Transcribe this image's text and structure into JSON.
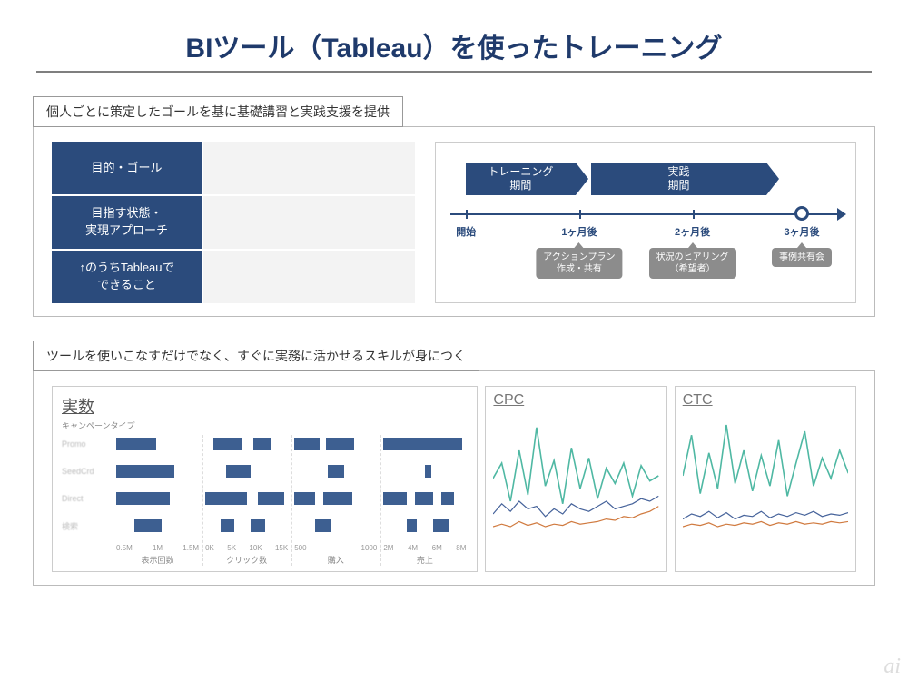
{
  "title": "BIツール（Tableau）を使ったトレーニング",
  "section1": {
    "label": "個人ごとに策定したゴールを基に基礎講習と実践支援を提供",
    "matrix_rows": [
      "目的・ゴール",
      "目指す状態・\n実現アプローチ",
      "↑のうちTableauで\nできること"
    ],
    "timeline": {
      "phases": [
        {
          "label": "トレーニング\n期間",
          "left_pct": 4,
          "width_pct": 28
        },
        {
          "label": "実践\n期間",
          "left_pct": 36,
          "width_pct": 45
        }
      ],
      "ticks": [
        {
          "pct": 4,
          "label": "開始"
        },
        {
          "pct": 33,
          "label": "1ヶ月後"
        },
        {
          "pct": 62,
          "label": "2ヶ月後"
        },
        {
          "pct": 90,
          "label": "3ヶ月後"
        }
      ],
      "end_circle_pct": 90,
      "milestones": [
        {
          "pct": 33,
          "text": "アクションプラン\n作成・共有"
        },
        {
          "pct": 62,
          "text": "状況のヒアリング\n（希望者）"
        },
        {
          "pct": 90,
          "text": "事例共有会"
        }
      ]
    }
  },
  "section2": {
    "label": "ツールを使いこなすだけでなく、すぐに実務に活かせるスキルが身につく",
    "dashboard": {
      "left_title": "実数",
      "left_subtitle": "キャンペーンタイプ",
      "row_labels": [
        "Promo",
        "SeedCrd",
        "Direct",
        "検索"
      ],
      "columns": [
        {
          "xlabel": "表示回数",
          "ticks": [
            "0.5M",
            "1M",
            "1.5M"
          ],
          "rows": [
            [
              [
                0,
                48
              ]
            ],
            [
              [
                0,
                70
              ]
            ],
            [
              [
                0,
                65
              ]
            ],
            [
              [
                22,
                55
              ]
            ]
          ]
        },
        {
          "xlabel": "クリック数",
          "ticks": [
            "0K",
            "5K",
            "10K",
            "15K"
          ],
          "rows": [
            [
              [
                10,
                45
              ],
              [
                58,
                80
              ]
            ],
            [
              [
                25,
                55
              ]
            ],
            [
              [
                0,
                50
              ],
              [
                63,
                95
              ]
            ],
            [
              [
                18,
                35
              ],
              [
                55,
                72
              ]
            ]
          ]
        },
        {
          "xlabel": "購入",
          "ticks": [
            "500",
            "1000"
          ],
          "rows": [
            [
              [
                0,
                30
              ],
              [
                38,
                72
              ]
            ],
            [
              [
                40,
                60
              ]
            ],
            [
              [
                0,
                25
              ],
              [
                35,
                70
              ]
            ],
            [
              [
                25,
                45
              ]
            ]
          ]
        },
        {
          "xlabel": "売上",
          "ticks": [
            "2M",
            "4M",
            "6M",
            "8M"
          ],
          "rows": [
            [
              [
                0,
                95
              ]
            ],
            [
              [
                50,
                58
              ]
            ],
            [
              [
                0,
                28
              ],
              [
                38,
                60
              ],
              [
                70,
                85
              ]
            ],
            [
              [
                28,
                40
              ],
              [
                60,
                80
              ]
            ]
          ]
        }
      ],
      "bar_color": "#3d5f91",
      "right": [
        {
          "title": "CPC",
          "series": [
            {
              "color": "#4fb8a3",
              "width": 1.6,
              "y": [
                48,
                60,
                30,
                70,
                35,
                88,
                42,
                62,
                28,
                72,
                40,
                64,
                32,
                56,
                44,
                60,
                34,
                58,
                46,
                50
              ]
            },
            {
              "color": "#45629a",
              "width": 1.2,
              "y": [
                20,
                28,
                22,
                30,
                24,
                26,
                18,
                24,
                20,
                28,
                24,
                22,
                26,
                30,
                24,
                26,
                28,
                32,
                30,
                34
              ]
            },
            {
              "color": "#d07a3f",
              "width": 1.2,
              "y": [
                10,
                12,
                10,
                14,
                11,
                13,
                10,
                12,
                11,
                14,
                12,
                13,
                14,
                16,
                15,
                18,
                17,
                20,
                22,
                26
              ]
            }
          ]
        },
        {
          "title": "CTC",
          "series": [
            {
              "color": "#4fb8a3",
              "width": 1.6,
              "y": [
                50,
                82,
                36,
                68,
                40,
                90,
                44,
                70,
                38,
                66,
                42,
                78,
                34,
                60,
                85,
                42,
                64,
                48,
                70,
                52
              ]
            },
            {
              "color": "#45629a",
              "width": 1.2,
              "y": [
                16,
                20,
                18,
                22,
                17,
                21,
                16,
                19,
                18,
                22,
                17,
                20,
                18,
                21,
                19,
                22,
                18,
                20,
                19,
                21
              ]
            },
            {
              "color": "#d07a3f",
              "width": 1.2,
              "y": [
                10,
                12,
                11,
                13,
                10,
                12,
                11,
                13,
                12,
                14,
                11,
                13,
                12,
                14,
                12,
                13,
                12,
                14,
                13,
                14
              ]
            }
          ]
        }
      ]
    }
  },
  "watermark": "ai",
  "colors": {
    "navy": "#2b4b7c",
    "title": "#1f3a6b",
    "grey": "#8c8c8c"
  }
}
